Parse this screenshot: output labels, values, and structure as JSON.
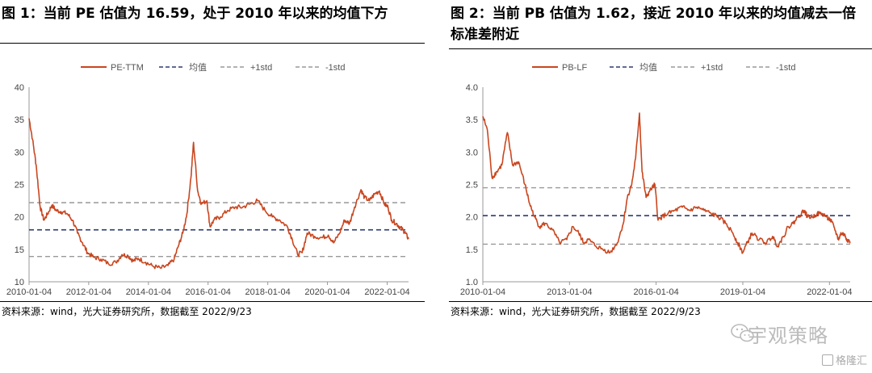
{
  "figures": [
    {
      "title": "图 1：当前 PE 估值为 16.59，处于 2010 年以来的均值下方",
      "source": "资料来源：wind，光大证券研究所，数据截至 2022/9/23"
    },
    {
      "title": "图 2：当前 PB 估值为 1.62，接近 2010 年以来的均值减去一倍标准差附近",
      "source": "资料来源：wind，光大证券研究所，数据截至 2022/9/23"
    }
  ],
  "watermark": {
    "text": "宇观策略",
    "brand": "格隆汇"
  },
  "chart_data": [
    {
      "type": "line",
      "title": "图 1：当前 PE 估值为 16.59，处于 2010 年以来的均值下方",
      "xlabel": "",
      "ylabel": "",
      "ylim": [
        10,
        40
      ],
      "yticks": [
        10,
        15,
        20,
        25,
        30,
        35,
        40
      ],
      "xlim": [
        "2010-01-04",
        "2022-09-23"
      ],
      "xticks": [
        "2010-01-04",
        "2012-01-04",
        "2014-01-04",
        "2016-01-04",
        "2018-01-04",
        "2020-01-04",
        "2022-01-04"
      ],
      "legend_position": "top",
      "grid": false,
      "series": [
        {
          "name": "PE-TTM",
          "color": "#c9461f",
          "style": "solid",
          "x": [
            "2010-01-04",
            "2010-02-15",
            "2010-04-01",
            "2010-05-20",
            "2010-07-05",
            "2010-08-20",
            "2010-10-10",
            "2010-12-01",
            "2011-02-01",
            "2011-04-15",
            "2011-06-20",
            "2011-08-20",
            "2011-10-20",
            "2011-12-20",
            "2012-03-01",
            "2012-06-01",
            "2012-09-01",
            "2012-12-01",
            "2013-02-15",
            "2013-05-01",
            "2013-07-01",
            "2013-09-01",
            "2013-12-01",
            "2014-03-01",
            "2014-06-01",
            "2014-09-01",
            "2014-11-15",
            "2015-01-05",
            "2015-03-01",
            "2015-04-20",
            "2015-06-08",
            "2015-07-10",
            "2015-08-30",
            "2015-10-15",
            "2015-12-20",
            "2016-01-28",
            "2016-03-15",
            "2016-06-01",
            "2016-09-01",
            "2016-12-01",
            "2017-03-01",
            "2017-06-01",
            "2017-09-01",
            "2017-12-01",
            "2018-03-01",
            "2018-06-01",
            "2018-09-01",
            "2018-11-01",
            "2019-01-04",
            "2019-03-01",
            "2019-05-01",
            "2019-08-01",
            "2019-11-01",
            "2020-01-15",
            "2020-03-20",
            "2020-06-01",
            "2020-08-01",
            "2020-10-01",
            "2020-12-01",
            "2021-02-18",
            "2021-04-01",
            "2021-06-01",
            "2021-08-01",
            "2021-10-01",
            "2021-12-01",
            "2022-01-15",
            "2022-03-01",
            "2022-04-26",
            "2022-06-01",
            "2022-07-15",
            "2022-08-15",
            "2022-09-23"
          ],
          "values": [
            35.2,
            32.0,
            28.0,
            21.5,
            19.5,
            20.5,
            21.8,
            21.0,
            20.8,
            20.5,
            19.5,
            17.5,
            16.0,
            14.5,
            13.8,
            13.5,
            12.8,
            13.0,
            14.2,
            14.0,
            13.2,
            13.6,
            13.0,
            12.4,
            12.1,
            12.5,
            13.5,
            15.5,
            17.5,
            20.5,
            26.0,
            31.5,
            24.0,
            22.0,
            22.5,
            18.5,
            19.5,
            20.0,
            21.0,
            21.5,
            21.5,
            22.0,
            22.5,
            21.0,
            20.0,
            19.5,
            18.5,
            16.5,
            14.2,
            14.5,
            17.5,
            17.0,
            16.8,
            17.2,
            16.0,
            17.5,
            19.5,
            19.0,
            21.5,
            24.2,
            23.0,
            22.5,
            23.5,
            24.0,
            22.0,
            21.5,
            19.5,
            19.0,
            18.5,
            18.0,
            17.5,
            16.6
          ]
        },
        {
          "name": "均值",
          "color": "#2e3a6e",
          "style": "dashed",
          "constant": 18.0
        },
        {
          "name": "+1std",
          "color": "#999999",
          "style": "dashed",
          "constant": 22.2
        },
        {
          "name": "-1std",
          "color": "#999999",
          "style": "dashed",
          "constant": 13.9
        }
      ]
    },
    {
      "type": "line",
      "title": "图 2：当前 PB 估值为 1.62，接近 2010 年以来的均值减去一倍标准差附近",
      "xlabel": "",
      "ylabel": "",
      "ylim": [
        1.0,
        4.0
      ],
      "yticks": [
        1.0,
        1.5,
        2.0,
        2.5,
        3.0,
        3.5,
        4.0
      ],
      "xlim": [
        "2010-01-04",
        "2022-09-23"
      ],
      "xticks": [
        "2010-01-04",
        "2013-01-04",
        "2016-01-04",
        "2019-01-04",
        "2022-01-04"
      ],
      "legend_position": "top",
      "grid": false,
      "series": [
        {
          "name": "PB-LF",
          "color": "#c9461f",
          "style": "solid",
          "x": [
            "2010-01-04",
            "2010-03-01",
            "2010-05-01",
            "2010-07-01",
            "2010-09-01",
            "2010-11-10",
            "2011-01-15",
            "2011-04-01",
            "2011-06-20",
            "2011-08-20",
            "2011-10-20",
            "2011-12-20",
            "2012-03-01",
            "2012-06-01",
            "2012-09-01",
            "2012-12-01",
            "2013-02-15",
            "2013-05-01",
            "2013-07-01",
            "2013-09-01",
            "2013-12-01",
            "2014-03-01",
            "2014-06-01",
            "2014-09-01",
            "2014-11-15",
            "2015-01-05",
            "2015-03-01",
            "2015-04-20",
            "2015-06-08",
            "2015-07-10",
            "2015-08-30",
            "2015-10-15",
            "2015-12-20",
            "2016-01-28",
            "2016-03-15",
            "2016-06-01",
            "2016-09-01",
            "2016-12-01",
            "2017-03-01",
            "2017-06-01",
            "2017-09-01",
            "2017-12-01",
            "2018-03-01",
            "2018-06-01",
            "2018-09-01",
            "2018-11-01",
            "2019-01-04",
            "2019-03-01",
            "2019-05-01",
            "2019-08-01",
            "2019-11-01",
            "2020-01-15",
            "2020-03-20",
            "2020-06-01",
            "2020-08-01",
            "2020-10-01",
            "2020-12-01",
            "2021-02-18",
            "2021-04-01",
            "2021-06-01",
            "2021-08-01",
            "2021-10-01",
            "2021-12-01",
            "2022-01-15",
            "2022-03-01",
            "2022-04-26",
            "2022-06-01",
            "2022-07-15",
            "2022-08-15",
            "2022-09-23"
          ],
          "values": [
            3.55,
            3.35,
            2.6,
            2.7,
            2.8,
            3.3,
            2.8,
            2.85,
            2.5,
            2.2,
            2.0,
            1.85,
            1.9,
            1.8,
            1.6,
            1.65,
            1.85,
            1.75,
            1.6,
            1.65,
            1.55,
            1.5,
            1.45,
            1.6,
            1.9,
            2.3,
            2.5,
            2.9,
            3.6,
            2.7,
            2.3,
            2.4,
            2.5,
            1.95,
            2.0,
            2.05,
            2.1,
            2.15,
            2.1,
            2.15,
            2.1,
            2.05,
            2.0,
            1.9,
            1.75,
            1.6,
            1.45,
            1.6,
            1.75,
            1.65,
            1.6,
            1.7,
            1.55,
            1.7,
            1.85,
            1.9,
            2.0,
            2.1,
            2.0,
            2.0,
            2.05,
            2.05,
            2.0,
            1.95,
            1.85,
            1.65,
            1.75,
            1.72,
            1.65,
            1.62
          ]
        },
        {
          "name": "均值",
          "color": "#2e3a6e",
          "style": "dashed",
          "constant": 2.02
        },
        {
          "name": "+1std",
          "color": "#999999",
          "style": "dashed",
          "constant": 2.45
        },
        {
          "name": "-1std",
          "color": "#999999",
          "style": "dashed",
          "constant": 1.58
        }
      ]
    }
  ]
}
